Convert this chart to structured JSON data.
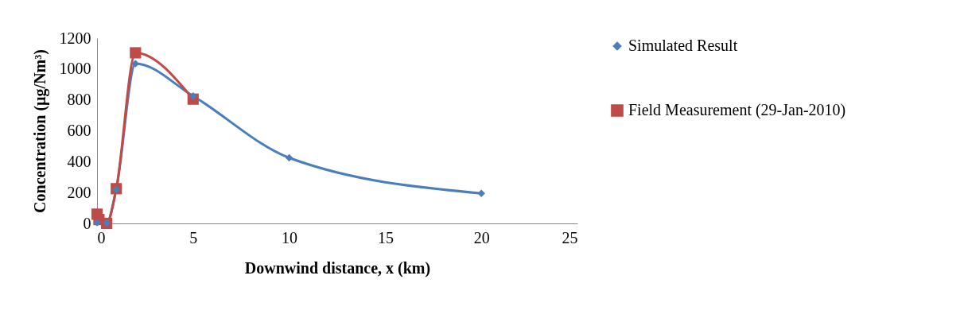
{
  "chart_data": {
    "type": "line",
    "xlabel": "Downwind distance, x (km)",
    "ylabel": "Concentration (µg/Nm³)",
    "xlim": [
      0,
      25
    ],
    "xticks": [
      0,
      5,
      10,
      15,
      20,
      25
    ],
    "ylim": [
      0,
      1200
    ],
    "yticks": [
      0,
      200,
      400,
      600,
      800,
      1000,
      1200
    ],
    "grid": false,
    "legend": "right",
    "line_style": "solid",
    "series": [
      {
        "name": "Simulated Result",
        "color": "#4a7ebb",
        "marker": "diamond",
        "x": [
          0,
          0.5,
          1,
          2,
          5,
          10,
          20
        ],
        "values": [
          5,
          3,
          220,
          1035,
          825,
          425,
          195
        ]
      },
      {
        "name": "Field Measurement (29-Jan-2010)",
        "color": "#be4b48",
        "marker": "square",
        "x": [
          0,
          0.1,
          0.5,
          1,
          2,
          5
        ],
        "values": [
          60,
          25,
          0,
          225,
          1105,
          805
        ]
      }
    ]
  }
}
